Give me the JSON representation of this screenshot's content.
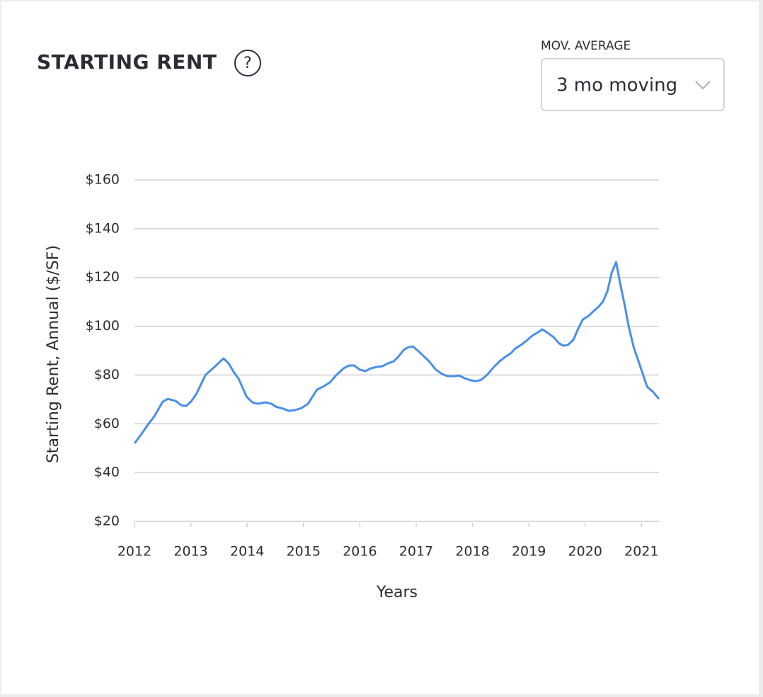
{
  "header": {
    "title": "STARTING RENT",
    "help_icon": "?",
    "dropdown_label": "MOV. AVERAGE",
    "dropdown_value": "3 mo moving"
  },
  "chart_data": {
    "type": "line",
    "x_label": "Years",
    "y_label": "Starting Rent, Annual ($/SF)",
    "x": [
      2012.0,
      2012.1,
      2012.25,
      2012.35,
      2012.5,
      2012.59,
      2012.73,
      2012.83,
      2012.92,
      2013.01,
      2013.1,
      2013.26,
      2013.42,
      2013.58,
      2013.67,
      2013.76,
      2013.85,
      2013.99,
      2014.09,
      2014.19,
      2014.33,
      2014.43,
      2014.51,
      2014.64,
      2014.74,
      2014.85,
      2014.97,
      2015.08,
      2015.24,
      2015.37,
      2015.47,
      2015.58,
      2015.71,
      2015.81,
      2015.9,
      2016.0,
      2016.1,
      2016.19,
      2016.3,
      2016.4,
      2016.5,
      2016.6,
      2016.68,
      2016.78,
      2016.86,
      2016.94,
      2017.03,
      2017.15,
      2017.23,
      2017.35,
      2017.46,
      2017.56,
      2017.66,
      2017.76,
      2017.86,
      2017.97,
      2018.07,
      2018.16,
      2018.26,
      2018.38,
      2018.48,
      2018.58,
      2018.69,
      2018.76,
      2018.86,
      2018.96,
      2019.06,
      2019.16,
      2019.24,
      2019.34,
      2019.44,
      2019.54,
      2019.62,
      2019.69,
      2019.79,
      2019.87,
      2019.96,
      2020.06,
      2020.14,
      2020.24,
      2020.32,
      2020.4,
      2020.47,
      2020.55,
      2020.62,
      2020.7,
      2020.77,
      2020.86,
      2020.99,
      2021.1,
      2021.2,
      2021.31
    ],
    "series": [
      {
        "name": "Starting Rent",
        "color": "#4a8fe8",
        "values": [
          52,
          55,
          60,
          63,
          69,
          70.2,
          69.4,
          67.6,
          67.3,
          69.3,
          72.3,
          80,
          83.3,
          86.8,
          84.8,
          81.3,
          78.4,
          71.1,
          68.8,
          68.2,
          68.8,
          68.2,
          67,
          66.2,
          65.3,
          65.6,
          66.5,
          68.2,
          74,
          75.5,
          77,
          79.9,
          82.7,
          83.9,
          83.9,
          82.2,
          81.6,
          82.7,
          83.3,
          83.6,
          84.8,
          85.6,
          87.4,
          90.3,
          91.4,
          91.7,
          90,
          87.4,
          85.6,
          82.2,
          80.4,
          79.5,
          79.5,
          79.8,
          78.7,
          77.8,
          77.5,
          78.1,
          80.1,
          83.3,
          85.6,
          87.4,
          89.1,
          90.9,
          92.3,
          94.1,
          96.1,
          97.5,
          98.7,
          97.2,
          95.5,
          92.9,
          92,
          92.3,
          94.4,
          98.7,
          102.8,
          104.2,
          106,
          108,
          110.3,
          114.7,
          121.9,
          126.3,
          117.6,
          108.9,
          100.2,
          91.5,
          82.7,
          75.2,
          73.2,
          70.2
        ]
      }
    ],
    "xlim": [
      2012,
      2021.31
    ],
    "xticks": [
      2012,
      2013,
      2014,
      2015,
      2016,
      2017,
      2018,
      2019,
      2020,
      2021
    ],
    "ylim": [
      20,
      160
    ],
    "yticks": [
      {
        "value": 20,
        "label": "$20"
      },
      {
        "value": 40,
        "label": "$40"
      },
      {
        "value": 60,
        "label": "$60"
      },
      {
        "value": 80,
        "label": "$80"
      },
      {
        "value": 100,
        "label": "$100"
      },
      {
        "value": 120,
        "label": "$120"
      },
      {
        "value": 140,
        "label": "$140"
      },
      {
        "value": 160,
        "label": "$160"
      }
    ],
    "grid": true
  }
}
